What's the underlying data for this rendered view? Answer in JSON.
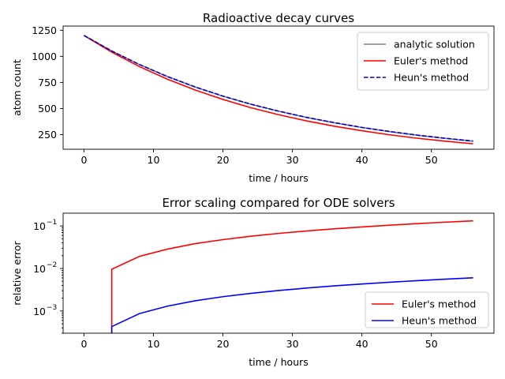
{
  "chart_data": [
    {
      "type": "line",
      "title": "Radioactive decay curves",
      "xlabel": "time / hours",
      "ylabel": "atom count",
      "xlim": [
        -3,
        59
      ],
      "ylim": [
        110,
        1290
      ],
      "xticks": [
        0,
        10,
        20,
        30,
        40,
        50
      ],
      "yticks": [
        250,
        500,
        750,
        1000,
        1250
      ],
      "legend": "top-right",
      "grid": false,
      "x": [
        0,
        4,
        8,
        12,
        16,
        20,
        24,
        28,
        32,
        36,
        40,
        44,
        48,
        52,
        56
      ],
      "series": [
        {
          "name": "analytic solution",
          "color": "#808080",
          "style": "solid",
          "values": [
            1200,
            1051,
            920,
            806,
            706,
            618,
            541,
            474,
            415,
            364,
            318,
            279,
            244,
            214,
            187
          ]
        },
        {
          "name": "Euler's method",
          "color": "#ff0000",
          "style": "solid",
          "values": [
            1200,
            1040,
            901,
            781,
            677,
            587,
            508,
            441,
            382,
            331,
            287,
            248,
            215,
            187,
            162
          ]
        },
        {
          "name": "Heun's method",
          "color": "#0000cc",
          "style": "dashed",
          "values": [
            1200,
            1051,
            921,
            807,
            707,
            619,
            542,
            475,
            416,
            365,
            319,
            280,
            245,
            215,
            188
          ]
        }
      ]
    },
    {
      "type": "line",
      "title": "Error scaling compared for ODE solvers",
      "xlabel": "time / hours",
      "ylabel": "relative error",
      "xscale": "linear",
      "yscale": "log",
      "xlim": [
        -3,
        59
      ],
      "ylim": [
        0.0003,
        0.2
      ],
      "xticks": [
        0,
        10,
        20,
        30,
        40,
        50
      ],
      "yticks": [
        0.001,
        0.01,
        0.1
      ],
      "ytick_labels": [
        "10",
        "10",
        "10"
      ],
      "ytick_exponents": [
        "−3",
        "−2",
        "−1"
      ],
      "legend": "bottom-right",
      "grid": false,
      "x": [
        0,
        4,
        8,
        12,
        16,
        20,
        24,
        28,
        32,
        36,
        40,
        44,
        48,
        52,
        56
      ],
      "series": [
        {
          "name": "Euler's method",
          "color": "#ff0000",
          "style": "solid",
          "values": [
            0,
            0.0096,
            0.0193,
            0.0285,
            0.0384,
            0.0477,
            0.0573,
            0.0668,
            0.0763,
            0.0856,
            0.095,
            0.1043,
            0.1136,
            0.1229,
            0.1321
          ]
        },
        {
          "name": "Heun's method",
          "color": "#0000ff",
          "style": "solid",
          "values": [
            0,
            0.00043,
            0.00087,
            0.0013,
            0.00174,
            0.00217,
            0.0026,
            0.00303,
            0.00346,
            0.00389,
            0.00432,
            0.00475,
            0.00518,
            0.00561,
            0.00604
          ]
        }
      ]
    }
  ]
}
